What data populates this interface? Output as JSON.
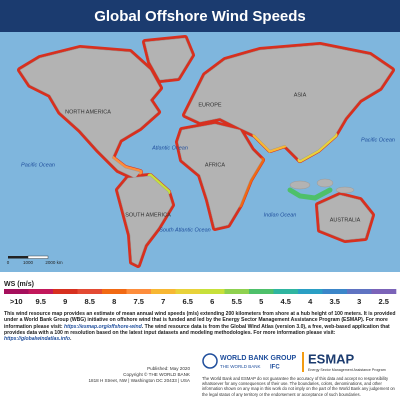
{
  "header": {
    "title": "Global Offshore Wind Speeds"
  },
  "map": {
    "labels": [
      "NORTH AMERICA",
      "EUROPE",
      "ASIA",
      "AFRICA",
      "SOUTH AMERICA",
      "AUSTRALIA"
    ],
    "oceans": [
      "Pacific Ocean",
      "Atlantic Ocean",
      "Pacific Ocean",
      "South Atlantic Ocean",
      "Indian Ocean"
    ],
    "scale": [
      "0",
      "1000",
      "2000 km"
    ]
  },
  "legend": {
    "title": "WS (m/s)",
    "labels": [
      ">10",
      "9.5",
      "9",
      "8.5",
      "8",
      "7.5",
      "7",
      "6.5",
      "6",
      "5.5",
      "5",
      "4.5",
      "4",
      "3.5",
      "3",
      "2.5"
    ],
    "colors": [
      "#a50f5c",
      "#c2185b",
      "#d7301f",
      "#e34a33",
      "#f16913",
      "#fd8d3c",
      "#f7b733",
      "#e8d23a",
      "#c7e03a",
      "#8fd14f",
      "#4ec06a",
      "#2fb5a0",
      "#2a9fc4",
      "#3b86c9",
      "#5f73c2",
      "#7b63b8"
    ]
  },
  "description": [
    "This wind resource map provides an estimate of mean annual wind speeds (m/s) extending 200 kilometers from shore at a hub height of 100 meters. It is provided under a World Bank Group (WBG) initiative on offshore wind that is funded and led by the Energy Sector Management Assistance Program (ESMAP). For more information please visit: ",
    "https://esmap.org/offshore-wind",
    ". The wind resource data is from the Global Wind Atlas (version 3.0), a free, web-based application that provides data with a 100 m resolution based on the latest input datasets and modeling methodologies. For more information please visit: ",
    "https://globalwindatlas.info",
    "."
  ],
  "footer": {
    "published": [
      "Published: May 2020",
      "Copyright © THE WORLD BANK",
      "1818 H Street, NW | Washington DC 20433 | USA"
    ],
    "worldbank": [
      "WORLD BANK GROUP",
      "THE WORLD BANK",
      "IFC"
    ],
    "esmap": [
      "ESMAP",
      "Energy Sector Management Assistance Program"
    ],
    "disclaimer": "The World Bank and ESMAP do not guarantee the accuracy of this data and accept no responsibility whatsoever for any consequences of their use. The boundaries, colors, denominations, and other information shown on any map in this work do not imply on the part of the World Bank any judgement on the legal status of any territory or the endorsement or acceptance of such boundaries."
  }
}
